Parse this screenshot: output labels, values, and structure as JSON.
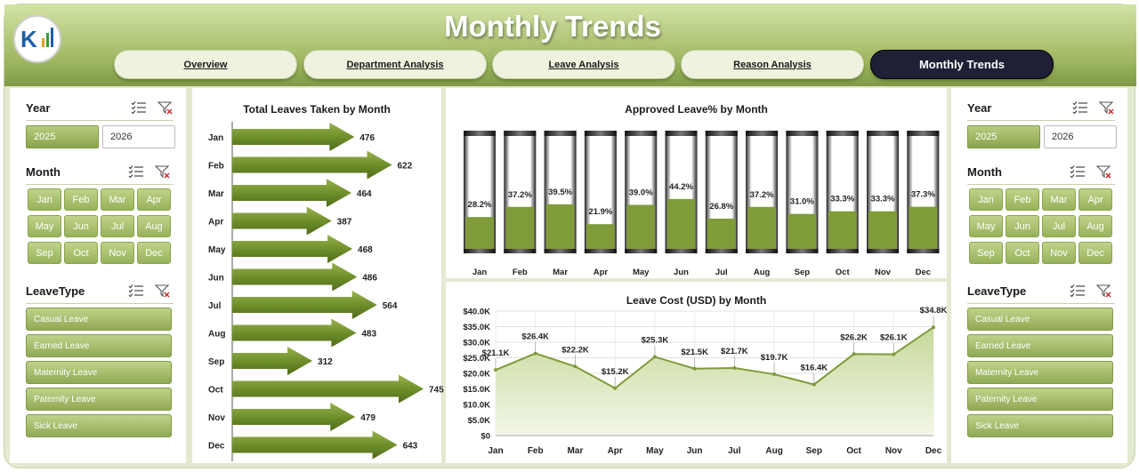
{
  "header": {
    "title": "Monthly Trends"
  },
  "tabs": [
    {
      "label": "Overview",
      "active": false
    },
    {
      "label": "Department Analysis",
      "active": false
    },
    {
      "label": "Leave Analysis",
      "active": false
    },
    {
      "label": "Reason Analysis",
      "active": false
    },
    {
      "label": "Monthly Trends",
      "active": true
    }
  ],
  "slicers": {
    "year": {
      "title": "Year",
      "options": [
        "2025",
        "2026"
      ],
      "selected": "2025"
    },
    "month": {
      "title": "Month",
      "options": [
        "Jan",
        "Feb",
        "Mar",
        "Apr",
        "May",
        "Jun",
        "Jul",
        "Aug",
        "Sep",
        "Oct",
        "Nov",
        "Dec"
      ]
    },
    "leavetype": {
      "title": "LeaveType",
      "options": [
        "Casual Leave",
        "Earned Leave",
        "Maternity Leave",
        "Paternity Leave",
        "Sick Leave"
      ]
    }
  },
  "colors": {
    "accent": "#7f9b3a",
    "header_light": "#d3e3a6",
    "active_tab": "#1f1f36",
    "area_fill": "#d9e6b8"
  },
  "icons": [
    "multi-select-icon",
    "clear-filter-icon"
  ],
  "chart_data": [
    {
      "type": "bar",
      "orientation": "horizontal",
      "title": "Total Leaves Taken by Month",
      "categories": [
        "Jan",
        "Feb",
        "Mar",
        "Apr",
        "May",
        "Jun",
        "Jul",
        "Aug",
        "Sep",
        "Oct",
        "Nov",
        "Dec"
      ],
      "values": [
        476,
        622,
        464,
        387,
        468,
        486,
        564,
        483,
        312,
        745,
        479,
        643
      ],
      "data_labels": [
        "476",
        "622",
        "464",
        "387",
        "468",
        "486",
        "564",
        "483",
        "312",
        "745",
        "479",
        "643"
      ]
    },
    {
      "type": "bar",
      "title": "Approved Leave% by Month",
      "categories": [
        "Jan",
        "Feb",
        "Mar",
        "Apr",
        "May",
        "Jun",
        "Jul",
        "Aug",
        "Sep",
        "Oct",
        "Nov",
        "Dec"
      ],
      "values": [
        28.2,
        37.2,
        39.5,
        21.9,
        39.0,
        44.2,
        26.8,
        37.2,
        31.0,
        33.3,
        33.3,
        37.3
      ],
      "data_labels": [
        "28.2%",
        "37.2%",
        "39.5%",
        "21.9%",
        "39.0%",
        "44.2%",
        "26.8%",
        "37.2%",
        "31.0%",
        "33.3%",
        "33.3%",
        "37.3%"
      ],
      "ylim": [
        0,
        100
      ]
    },
    {
      "type": "area",
      "title": "Leave Cost (USD) by Month",
      "categories": [
        "Jan",
        "Feb",
        "Mar",
        "Apr",
        "May",
        "Jun",
        "Jul",
        "Aug",
        "Sep",
        "Oct",
        "Nov",
        "Dec"
      ],
      "values": [
        21100,
        26400,
        22200,
        15200,
        25300,
        21500,
        21700,
        19700,
        16400,
        26200,
        26100,
        34800
      ],
      "data_labels": [
        "$21.1K",
        "$26.4K",
        "$22.2K",
        "$15.2K",
        "$25.3K",
        "$21.5K",
        "$21.7K",
        "$19.7K",
        "$16.4K",
        "$26.2K",
        "$26.1K",
        "$34.8K"
      ],
      "ylim": [
        0,
        40000
      ],
      "yticks": [
        "$0",
        "$5.0K",
        "$10.0K",
        "$15.0K",
        "$20.0K",
        "$25.0K",
        "$30.0K",
        "$35.0K",
        "$40.0K"
      ],
      "grid": true
    }
  ]
}
